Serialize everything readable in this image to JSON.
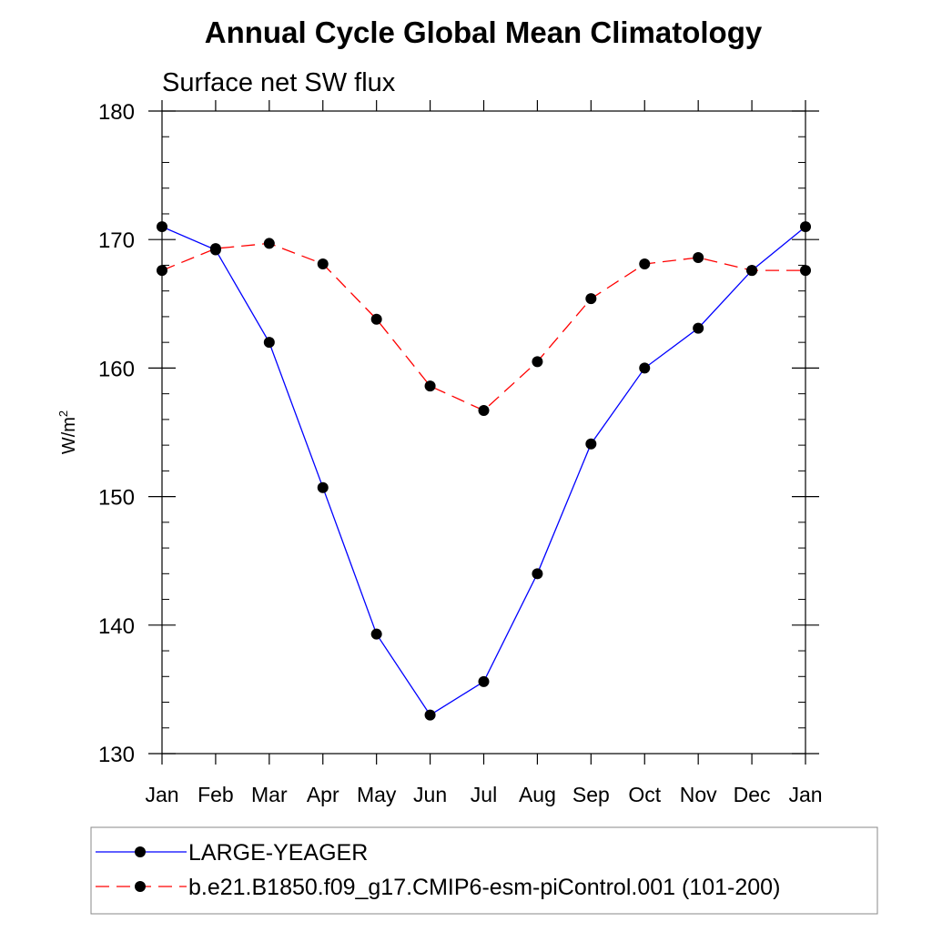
{
  "chart_data": {
    "type": "line",
    "title": "Annual Cycle Global Mean Climatology",
    "subtitle": "Surface net SW flux",
    "ylabel": "W/m",
    "ylabel_sup": "2",
    "xlabel": "",
    "categories": [
      "Jan",
      "Feb",
      "Mar",
      "Apr",
      "May",
      "Jun",
      "Jul",
      "Aug",
      "Sep",
      "Oct",
      "Nov",
      "Dec",
      "Jan"
    ],
    "ylim": [
      130,
      180
    ],
    "yticks": [
      "130",
      "140",
      "150",
      "160",
      "170",
      "180"
    ],
    "grid": false,
    "legend_position": "bottom",
    "series": [
      {
        "name": "LARGE-YEAGER",
        "color": "#0000ff",
        "dash": "solid",
        "marker": "filled-circle",
        "values": [
          171.0,
          169.2,
          162.0,
          150.7,
          139.3,
          133.0,
          135.6,
          144.0,
          154.1,
          160.0,
          163.1,
          167.6,
          171.0
        ]
      },
      {
        "name": "b.e21.B1850.f09_g17.CMIP6-esm-piControl.001 (101-200)",
        "color": "#ff0000",
        "dash": "dashed",
        "marker": "filled-circle",
        "values": [
          167.6,
          169.3,
          169.7,
          168.1,
          163.8,
          158.6,
          156.7,
          160.5,
          165.4,
          168.1,
          168.6,
          167.6,
          167.6
        ]
      }
    ]
  }
}
